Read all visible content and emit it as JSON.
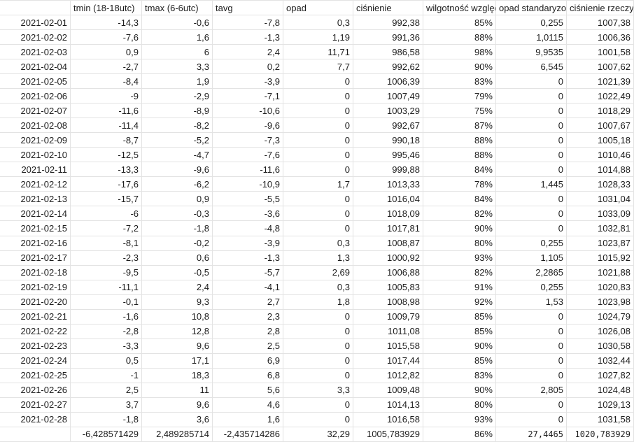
{
  "app": {
    "type": "spreadsheet",
    "colors": {
      "background": "#ffffff",
      "gridline": "#e3e3e3",
      "text": "#1c1c1c"
    }
  },
  "table": {
    "columns": [
      {
        "label": ""
      },
      {
        "label": "tmin (18-18utc)"
      },
      {
        "label": "tmax (6-6utc)"
      },
      {
        "label": "tavg"
      },
      {
        "label": "opad"
      },
      {
        "label": "ciśnienie"
      },
      {
        "label": "wilgotność względna"
      },
      {
        "label": "opad standaryzowany"
      },
      {
        "label": "ciśnienie rzeczywisty"
      }
    ],
    "rows": [
      [
        "2021-02-01",
        "-14,3",
        "-0,6",
        "-7,8",
        "0,3",
        "992,38",
        "85%",
        "0,255",
        "1007,38"
      ],
      [
        "2021-02-02",
        "-7,6",
        "1,6",
        "-1,3",
        "1,19",
        "991,36",
        "88%",
        "1,0115",
        "1006,36"
      ],
      [
        "2021-02-03",
        "0,9",
        "6",
        "2,4",
        "11,71",
        "986,58",
        "98%",
        "9,9535",
        "1001,58"
      ],
      [
        "2021-02-04",
        "-2,7",
        "3,3",
        "0,2",
        "7,7",
        "992,62",
        "90%",
        "6,545",
        "1007,62"
      ],
      [
        "2021-02-05",
        "-8,4",
        "1,9",
        "-3,9",
        "0",
        "1006,39",
        "83%",
        "0",
        "1021,39"
      ],
      [
        "2021-02-06",
        "-9",
        "-2,9",
        "-7,1",
        "0",
        "1007,49",
        "79%",
        "0",
        "1022,49"
      ],
      [
        "2021-02-07",
        "-11,6",
        "-8,9",
        "-10,6",
        "0",
        "1003,29",
        "75%",
        "0",
        "1018,29"
      ],
      [
        "2021-02-08",
        "-11,4",
        "-8,2",
        "-9,6",
        "0",
        "992,67",
        "87%",
        "0",
        "1007,67"
      ],
      [
        "2021-02-09",
        "-8,7",
        "-5,2",
        "-7,3",
        "0",
        "990,18",
        "88%",
        "0",
        "1005,18"
      ],
      [
        "2021-02-10",
        "-12,5",
        "-4,7",
        "-7,6",
        "0",
        "995,46",
        "88%",
        "0",
        "1010,46"
      ],
      [
        "2021-02-11",
        "-13,3",
        "-9,6",
        "-11,6",
        "0",
        "999,88",
        "84%",
        "0",
        "1014,88"
      ],
      [
        "2021-02-12",
        "-17,6",
        "-6,2",
        "-10,9",
        "1,7",
        "1013,33",
        "78%",
        "1,445",
        "1028,33"
      ],
      [
        "2021-02-13",
        "-15,7",
        "0,9",
        "-5,5",
        "0",
        "1016,04",
        "84%",
        "0",
        "1031,04"
      ],
      [
        "2021-02-14",
        "-6",
        "-0,3",
        "-3,6",
        "0",
        "1018,09",
        "82%",
        "0",
        "1033,09"
      ],
      [
        "2021-02-15",
        "-7,2",
        "-1,8",
        "-4,8",
        "0",
        "1017,81",
        "90%",
        "0",
        "1032,81"
      ],
      [
        "2021-02-16",
        "-8,1",
        "-0,2",
        "-3,9",
        "0,3",
        "1008,87",
        "80%",
        "0,255",
        "1023,87"
      ],
      [
        "2021-02-17",
        "-2,3",
        "0,6",
        "-1,3",
        "1,3",
        "1000,92",
        "93%",
        "1,105",
        "1015,92"
      ],
      [
        "2021-02-18",
        "-9,5",
        "-0,5",
        "-5,7",
        "2,69",
        "1006,88",
        "82%",
        "2,2865",
        "1021,88"
      ],
      [
        "2021-02-19",
        "-11,1",
        "2,4",
        "-4,1",
        "0,3",
        "1005,83",
        "91%",
        "0,255",
        "1020,83"
      ],
      [
        "2021-02-20",
        "-0,1",
        "9,3",
        "2,7",
        "1,8",
        "1008,98",
        "92%",
        "1,53",
        "1023,98"
      ],
      [
        "2021-02-21",
        "-1,6",
        "10,8",
        "2,3",
        "0",
        "1009,79",
        "85%",
        "0",
        "1024,79"
      ],
      [
        "2021-02-22",
        "-2,8",
        "12,8",
        "2,8",
        "0",
        "1011,08",
        "85%",
        "0",
        "1026,08"
      ],
      [
        "2021-02-23",
        "-3,3",
        "9,6",
        "2,5",
        "0",
        "1015,58",
        "90%",
        "0",
        "1030,58"
      ],
      [
        "2021-02-24",
        "0,5",
        "17,1",
        "6,9",
        "0",
        "1017,44",
        "85%",
        "0",
        "1032,44"
      ],
      [
        "2021-02-25",
        "-1",
        "18,3",
        "6,8",
        "0",
        "1012,82",
        "83%",
        "0",
        "1027,82"
      ],
      [
        "2021-02-26",
        "2,5",
        "11",
        "5,6",
        "3,3",
        "1009,48",
        "90%",
        "2,805",
        "1024,48"
      ],
      [
        "2021-02-27",
        "3,7",
        "9,6",
        "4,6",
        "0",
        "1014,13",
        "80%",
        "0",
        "1029,13"
      ],
      [
        "2021-02-28",
        "-1,8",
        "3,6",
        "1,6",
        "0",
        "1016,58",
        "93%",
        "0",
        "1031,58"
      ]
    ],
    "summary_row": [
      "",
      "-6,428571429",
      "2,489285714",
      "-2,435714286",
      "32,29",
      "1005,783929",
      "86%",
      "27,4465",
      "1020,783929"
    ],
    "summary_mono_columns": [
      7,
      8
    ]
  }
}
